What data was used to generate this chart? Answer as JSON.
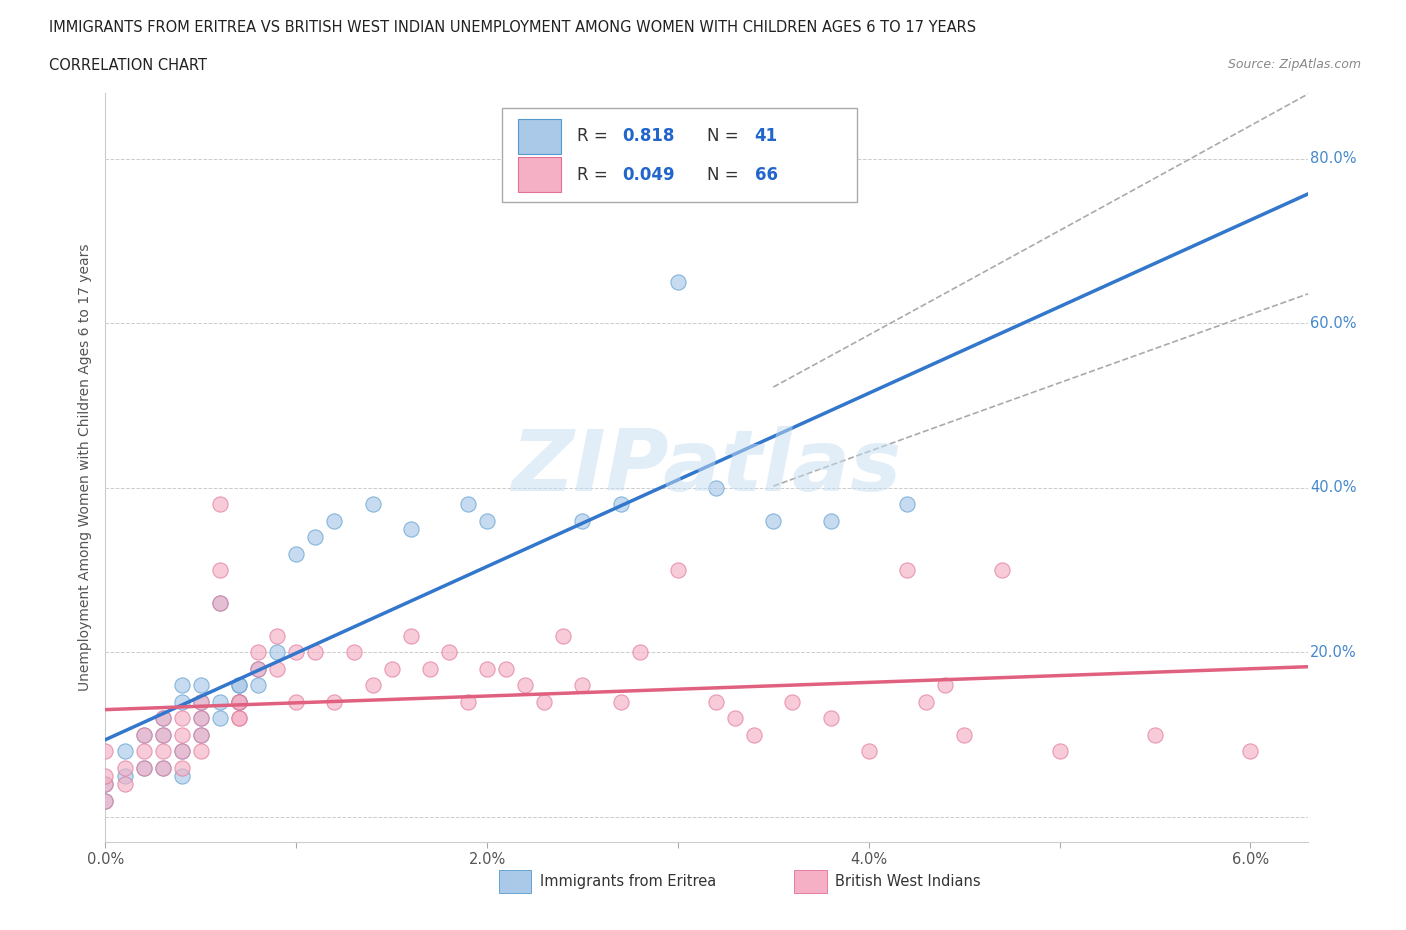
{
  "title_line1": "IMMIGRANTS FROM ERITREA VS BRITISH WEST INDIAN UNEMPLOYMENT AMONG WOMEN WITH CHILDREN AGES 6 TO 17 YEARS",
  "title_line2": "CORRELATION CHART",
  "source_text": "Source: ZipAtlas.com",
  "ylabel": "Unemployment Among Women with Children Ages 6 to 17 years",
  "xlim": [
    0.0,
    0.063
  ],
  "ylim": [
    -0.03,
    0.88
  ],
  "xtick_vals": [
    0.0,
    0.01,
    0.02,
    0.03,
    0.04,
    0.05,
    0.06
  ],
  "xticklabels": [
    "0.0%",
    "",
    "2.0%",
    "",
    "4.0%",
    "",
    "6.0%"
  ],
  "ytick_vals": [
    0.0,
    0.2,
    0.4,
    0.6,
    0.8
  ],
  "ytick_right_labels": [
    "",
    "20.0%",
    "40.0%",
    "60.0%",
    "80.0%"
  ],
  "blue_face": "#aac8e8",
  "blue_edge": "#5599cc",
  "pink_face": "#f5b0c5",
  "pink_edge": "#e07095",
  "blue_line": "#3377cc",
  "pink_line": "#e06080",
  "watermark": "ZIPatlas",
  "blue_scatter": [
    [
      0.0,
      0.02
    ],
    [
      0.0,
      0.04
    ],
    [
      0.001,
      0.05
    ],
    [
      0.001,
      0.08
    ],
    [
      0.002,
      0.06
    ],
    [
      0.002,
      0.1
    ],
    [
      0.003,
      0.06
    ],
    [
      0.003,
      0.1
    ],
    [
      0.003,
      0.12
    ],
    [
      0.004,
      0.05
    ],
    [
      0.004,
      0.08
    ],
    [
      0.004,
      0.14
    ],
    [
      0.004,
      0.16
    ],
    [
      0.005,
      0.1
    ],
    [
      0.005,
      0.12
    ],
    [
      0.005,
      0.14
    ],
    [
      0.005,
      0.16
    ],
    [
      0.006,
      0.12
    ],
    [
      0.006,
      0.14
    ],
    [
      0.006,
      0.26
    ],
    [
      0.007,
      0.14
    ],
    [
      0.007,
      0.16
    ],
    [
      0.007,
      0.14
    ],
    [
      0.007,
      0.16
    ],
    [
      0.008,
      0.16
    ],
    [
      0.008,
      0.18
    ],
    [
      0.009,
      0.2
    ],
    [
      0.01,
      0.32
    ],
    [
      0.011,
      0.34
    ],
    [
      0.012,
      0.36
    ],
    [
      0.014,
      0.38
    ],
    [
      0.016,
      0.35
    ],
    [
      0.019,
      0.38
    ],
    [
      0.02,
      0.36
    ],
    [
      0.025,
      0.36
    ],
    [
      0.027,
      0.38
    ],
    [
      0.03,
      0.65
    ],
    [
      0.032,
      0.4
    ],
    [
      0.035,
      0.36
    ],
    [
      0.038,
      0.36
    ],
    [
      0.042,
      0.38
    ]
  ],
  "pink_scatter": [
    [
      0.0,
      0.02
    ],
    [
      0.0,
      0.04
    ],
    [
      0.0,
      0.05
    ],
    [
      0.0,
      0.08
    ],
    [
      0.001,
      0.04
    ],
    [
      0.001,
      0.06
    ],
    [
      0.002,
      0.06
    ],
    [
      0.002,
      0.08
    ],
    [
      0.002,
      0.1
    ],
    [
      0.003,
      0.06
    ],
    [
      0.003,
      0.08
    ],
    [
      0.003,
      0.1
    ],
    [
      0.003,
      0.12
    ],
    [
      0.004,
      0.06
    ],
    [
      0.004,
      0.08
    ],
    [
      0.004,
      0.1
    ],
    [
      0.004,
      0.12
    ],
    [
      0.005,
      0.08
    ],
    [
      0.005,
      0.1
    ],
    [
      0.005,
      0.12
    ],
    [
      0.005,
      0.14
    ],
    [
      0.006,
      0.26
    ],
    [
      0.006,
      0.3
    ],
    [
      0.006,
      0.38
    ],
    [
      0.007,
      0.12
    ],
    [
      0.007,
      0.14
    ],
    [
      0.007,
      0.12
    ],
    [
      0.007,
      0.14
    ],
    [
      0.008,
      0.18
    ],
    [
      0.008,
      0.2
    ],
    [
      0.009,
      0.18
    ],
    [
      0.009,
      0.22
    ],
    [
      0.01,
      0.2
    ],
    [
      0.01,
      0.14
    ],
    [
      0.011,
      0.2
    ],
    [
      0.012,
      0.14
    ],
    [
      0.013,
      0.2
    ],
    [
      0.014,
      0.16
    ],
    [
      0.015,
      0.18
    ],
    [
      0.016,
      0.22
    ],
    [
      0.017,
      0.18
    ],
    [
      0.018,
      0.2
    ],
    [
      0.019,
      0.14
    ],
    [
      0.02,
      0.18
    ],
    [
      0.021,
      0.18
    ],
    [
      0.022,
      0.16
    ],
    [
      0.023,
      0.14
    ],
    [
      0.024,
      0.22
    ],
    [
      0.025,
      0.16
    ],
    [
      0.027,
      0.14
    ],
    [
      0.028,
      0.2
    ],
    [
      0.03,
      0.3
    ],
    [
      0.032,
      0.14
    ],
    [
      0.033,
      0.12
    ],
    [
      0.034,
      0.1
    ],
    [
      0.036,
      0.14
    ],
    [
      0.038,
      0.12
    ],
    [
      0.04,
      0.08
    ],
    [
      0.042,
      0.3
    ],
    [
      0.043,
      0.14
    ],
    [
      0.044,
      0.16
    ],
    [
      0.045,
      0.1
    ],
    [
      0.047,
      0.3
    ],
    [
      0.05,
      0.08
    ],
    [
      0.055,
      0.1
    ],
    [
      0.06,
      0.08
    ]
  ]
}
